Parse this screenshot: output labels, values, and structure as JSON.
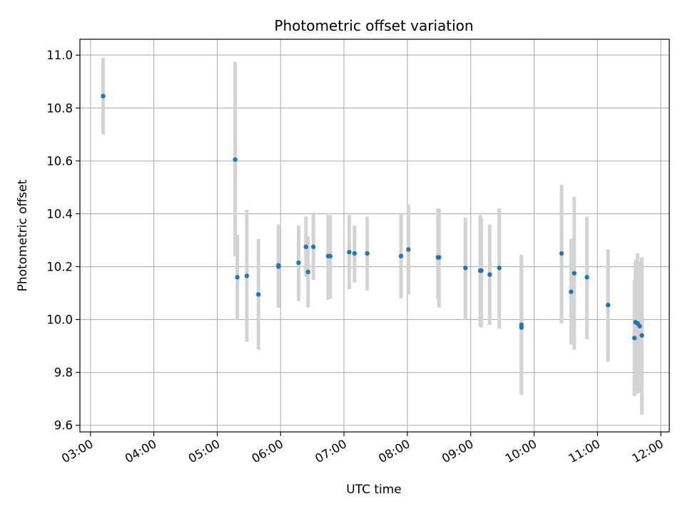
{
  "chart_data": {
    "type": "scatter",
    "title": "Photometric offset variation",
    "xlabel": "UTC time",
    "ylabel": "Photometric offset",
    "x_unit": "hours UTC",
    "xlim": [
      "02:50",
      "12:08"
    ],
    "ylim": [
      9.575,
      11.06
    ],
    "x_ticks": [
      "03:00",
      "04:00",
      "05:00",
      "06:00",
      "07:00",
      "08:00",
      "09:00",
      "10:00",
      "11:00",
      "12:00"
    ],
    "y_ticks": [
      "9.6",
      "9.8",
      "10.0",
      "10.2",
      "10.4",
      "10.6",
      "10.8",
      "11.0"
    ],
    "grid": true,
    "marker_color": "#1f77b4",
    "errorbar_color": "#d3d3d3",
    "points": [
      {
        "t": "03:12",
        "y": 10.845,
        "lo": 10.7,
        "hi": 10.99
      },
      {
        "t": "05:17",
        "y": 10.605,
        "lo": 10.24,
        "hi": 10.975
      },
      {
        "t": "05:19",
        "y": 10.16,
        "lo": 10.0,
        "hi": 10.32
      },
      {
        "t": "05:28",
        "y": 10.165,
        "lo": 9.915,
        "hi": 10.415
      },
      {
        "t": "05:39",
        "y": 10.095,
        "lo": 9.885,
        "hi": 10.305
      },
      {
        "t": "05:58",
        "y": 10.2,
        "lo": 10.045,
        "hi": 10.355
      },
      {
        "t": "05:58",
        "y": 10.205,
        "lo": 10.05,
        "hi": 10.36
      },
      {
        "t": "06:17",
        "y": 10.215,
        "lo": 10.07,
        "hi": 10.355
      },
      {
        "t": "06:24",
        "y": 10.275,
        "lo": 10.16,
        "hi": 10.39
      },
      {
        "t": "06:26",
        "y": 10.18,
        "lo": 10.045,
        "hi": 10.315
      },
      {
        "t": "06:31",
        "y": 10.275,
        "lo": 10.15,
        "hi": 10.405
      },
      {
        "t": "06:45",
        "y": 10.24,
        "lo": 10.075,
        "hi": 10.395
      },
      {
        "t": "06:47",
        "y": 10.24,
        "lo": 10.08,
        "hi": 10.395
      },
      {
        "t": "07:05",
        "y": 10.255,
        "lo": 10.115,
        "hi": 10.395
      },
      {
        "t": "07:10",
        "y": 10.25,
        "lo": 10.14,
        "hi": 10.355
      },
      {
        "t": "07:22",
        "y": 10.25,
        "lo": 10.11,
        "hi": 10.39
      },
      {
        "t": "07:54",
        "y": 10.24,
        "lo": 10.08,
        "hi": 10.4
      },
      {
        "t": "08:01",
        "y": 10.265,
        "lo": 10.095,
        "hi": 10.435
      },
      {
        "t": "08:29",
        "y": 10.235,
        "lo": 10.075,
        "hi": 10.42
      },
      {
        "t": "08:30",
        "y": 10.235,
        "lo": 10.045,
        "hi": 10.42
      },
      {
        "t": "08:55",
        "y": 10.195,
        "lo": 10.0,
        "hi": 10.385
      },
      {
        "t": "09:09",
        "y": 10.185,
        "lo": 9.975,
        "hi": 10.395
      },
      {
        "t": "09:10",
        "y": 10.185,
        "lo": 9.97,
        "hi": 10.385
      },
      {
        "t": "09:18",
        "y": 10.17,
        "lo": 9.98,
        "hi": 10.36
      },
      {
        "t": "09:27",
        "y": 10.195,
        "lo": 9.965,
        "hi": 10.42
      },
      {
        "t": "09:48",
        "y": 9.98,
        "lo": 9.715,
        "hi": 10.245
      },
      {
        "t": "09:48",
        "y": 9.97,
        "lo": 9.72,
        "hi": 10.245
      },
      {
        "t": "10:26",
        "y": 10.25,
        "lo": 9.985,
        "hi": 10.51
      },
      {
        "t": "10:35",
        "y": 10.105,
        "lo": 9.905,
        "hi": 10.305
      },
      {
        "t": "10:38",
        "y": 10.175,
        "lo": 9.885,
        "hi": 10.465
      },
      {
        "t": "10:50",
        "y": 10.16,
        "lo": 9.925,
        "hi": 10.39
      },
      {
        "t": "11:10",
        "y": 10.055,
        "lo": 9.84,
        "hi": 10.265
      },
      {
        "t": "11:35",
        "y": 9.93,
        "lo": 9.71,
        "hi": 10.15
      },
      {
        "t": "11:36",
        "y": 9.99,
        "lo": 9.725,
        "hi": 10.225
      },
      {
        "t": "11:38",
        "y": 9.985,
        "lo": 9.72,
        "hi": 10.25
      },
      {
        "t": "11:40",
        "y": 9.975,
        "lo": 9.725,
        "hi": 10.22
      },
      {
        "t": "11:42",
        "y": 9.94,
        "lo": 9.64,
        "hi": 10.235
      }
    ]
  }
}
